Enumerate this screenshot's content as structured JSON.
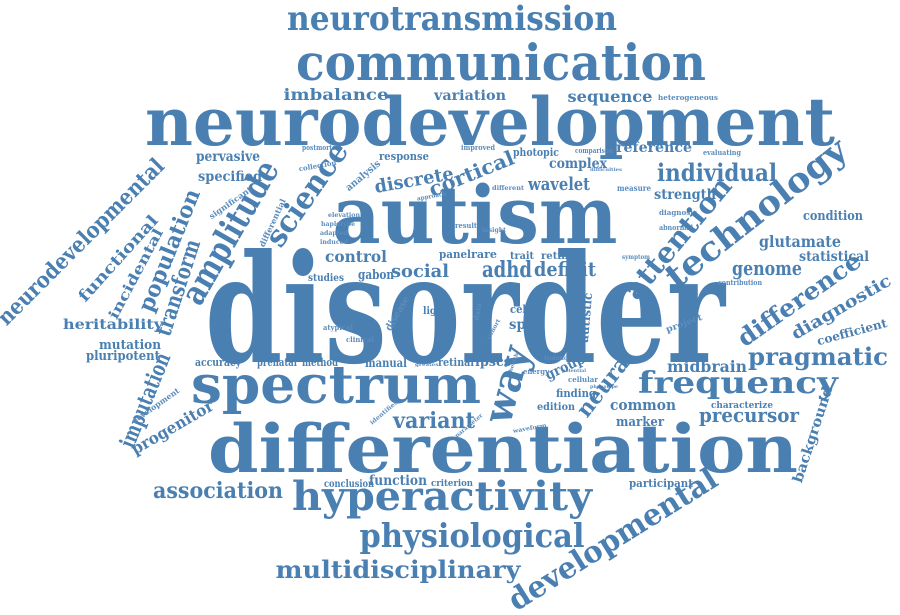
{
  "style": {
    "word_color": "#4a7fb1",
    "small_word_color": "#5a8cbd",
    "background": "#ffffff"
  },
  "words": {
    "disorder": "disorder",
    "neurodevelopment": "neurodevelopment",
    "differentiation": "differentiation",
    "autism": "autism",
    "communication": "communication",
    "spectrum": "spectrum",
    "hyperactivity": "hyperactivity",
    "neurotransmission": "neurotransmission",
    "physiological": "physiological",
    "developmental": "developmental",
    "amplitude": "amplitude",
    "technology": "technology",
    "multidisciplinary": "multidisciplinary",
    "frequency": "frequency",
    "science": "science",
    "attention": "attention",
    "population": "population",
    "transform": "transform",
    "imputation": "imputation",
    "individual": "individual",
    "neurodevelopmental": "neurodevelopmental",
    "pragmatic": "pragmatic",
    "difference": "difference",
    "way": "way",
    "genome": "genome",
    "cortical": "cortical",
    "association": "association",
    "precursor": "precursor",
    "neural": "neural",
    "diagnostic": "diagnostic",
    "variant": "variant",
    "wavelet": "wavelet",
    "deficit": "deficit",
    "control": "control",
    "adhd": "adhd",
    "social": "social",
    "discrete": "discrete",
    "glutamate": "glutamate",
    "imbalance": "imbalance",
    "variation": "variation",
    "sequence": "sequence",
    "functional": "functional",
    "progenitor": "progenitor",
    "reference": "reference",
    "complex": "complex",
    "strength": "strength",
    "statistical": "statistical",
    "common": "common",
    "midbrain": "midbrain",
    "heritability": "heritability",
    "group": "group",
    "background": "background",
    "pervasive": "pervasive",
    "specified": "specified",
    "incidental": "incidental",
    "condition": "condition",
    "function": "function",
    "marker": "marker",
    "mutation": "mutation",
    "pluripotent": "pluripotent",
    "coefficient": "coefficient",
    "spcd": "spcd",
    "panel": "panel",
    "rare": "rare",
    "finding": "finding",
    "ipscs": "ipscs",
    "retinal": "retinal",
    "manual": "manual",
    "method": "method",
    "prenatal": "prenatal",
    "accuracy": "accuracy",
    "participant": "participant",
    "response": "response",
    "photopic": "photopic",
    "gabon": "gabon",
    "studies": "studies",
    "conclusion": "conclusion",
    "criterion": "criterion",
    "edition": "edition",
    "cell": "cell",
    "trait": "trait",
    "retina": "retina",
    "autistic": "autistic",
    "analysis": "analysis",
    "disease": "disease",
    "light": "light",
    "characterize": "characterize",
    "project": "project",
    "development": "development",
    "significant": "significant",
    "differential": "differential",
    "collection": "collection",
    "postmortem": "postmortem",
    "improved": "improved",
    "comparison": "comparison",
    "evaluating": "evaluating",
    "heterogeneous": "heterogeneous",
    "measure": "measure",
    "diagnosis": "diagnosis",
    "abnormal": "abnormal",
    "atypical": "atypical",
    "clinical": "clinical",
    "cellular": "cellular",
    "energy": "energy",
    "identifies": "identifies",
    "parameter": "parameter",
    "waveform": "waveform",
    "contribution": "contribution",
    "symptom": "symptom",
    "result": "result",
    "different": "different",
    "insight": "insight",
    "elevation": "elevation",
    "haplotype": "haplotype",
    "adapted": "adapted",
    "induced": "induced",
    "approach": "approach",
    "difficulties": "difficulties",
    "troland": "troland",
    "potential": "potential",
    "phenotype": "phenotype",
    "data": "data",
    "cohort": "cohort",
    "greatest": "greatest",
    "health": "health"
  }
}
